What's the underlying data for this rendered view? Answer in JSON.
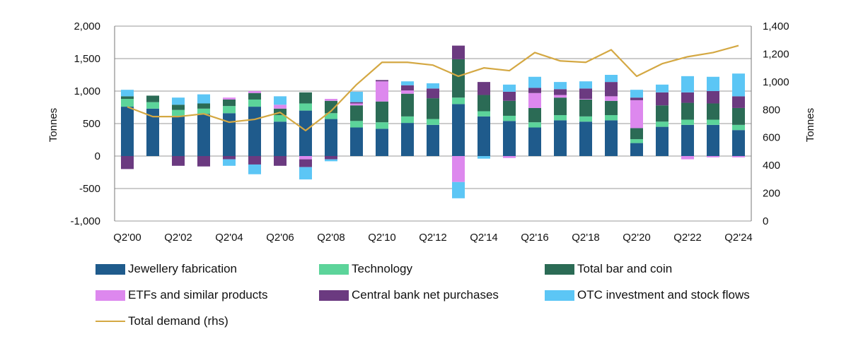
{
  "chart_data": {
    "type": "bar",
    "stacked": true,
    "categories": [
      "Q2'00",
      "Q2'01",
      "Q2'02",
      "Q2'03",
      "Q2'04",
      "Q2'05",
      "Q2'06",
      "Q2'07",
      "Q2'08",
      "Q2'09",
      "Q2'10",
      "Q2'11",
      "Q2'12",
      "Q2'13",
      "Q2'14",
      "Q2'15",
      "Q2'16",
      "Q2'17",
      "Q2'18",
      "Q2'19",
      "Q2'20",
      "Q2'21",
      "Q2'22",
      "Q2'23",
      "Q2'24"
    ],
    "x_tick_labels": [
      "Q2'00",
      "Q2'02",
      "Q2'04",
      "Q2'06",
      "Q2'08",
      "Q2'10",
      "Q2'12",
      "Q2'14",
      "Q2'16",
      "Q2'18",
      "Q2'20",
      "Q2'22",
      "Q2'24"
    ],
    "ylabel": "Tonnes",
    "y2label": "Tonnes",
    "ylim": [
      -1000,
      2000
    ],
    "y_ticks": [
      -1000,
      -500,
      0,
      500,
      1000,
      1500,
      2000
    ],
    "y_tick_labels": [
      "-1,000",
      "-500",
      "0",
      "500",
      "1,000",
      "1,500",
      "2,000"
    ],
    "y2lim": [
      0,
      1400
    ],
    "y2_ticks": [
      0,
      200,
      400,
      600,
      800,
      1000,
      1200,
      1400
    ],
    "y2_tick_labels": [
      "0",
      "200",
      "400",
      "600",
      "800",
      "1,000",
      "1,200",
      "1,400"
    ],
    "grid": true,
    "legend_position": "bottom",
    "series": [
      {
        "name": "Jewellery fabrication",
        "color": "#1f5b8c",
        "values": [
          760,
          730,
          620,
          650,
          660,
          760,
          530,
          700,
          570,
          440,
          420,
          510,
          480,
          800,
          610,
          540,
          440,
          550,
          530,
          550,
          200,
          450,
          480,
          480,
          400
        ]
      },
      {
        "name": "Technology",
        "color": "#5cd49a",
        "values": [
          120,
          100,
          90,
          80,
          110,
          110,
          100,
          110,
          90,
          100,
          100,
          100,
          90,
          100,
          80,
          80,
          80,
          80,
          80,
          80,
          60,
          80,
          80,
          80,
          80
        ]
      },
      {
        "name": "Total bar and coin",
        "color": "#2b6b55",
        "values": [
          40,
          100,
          80,
          80,
          100,
          100,
          100,
          170,
          190,
          240,
          320,
          350,
          320,
          590,
          250,
          230,
          220,
          270,
          260,
          220,
          170,
          250,
          260,
          250,
          260
        ]
      },
      {
        "name": "ETFs and similar products",
        "color": "#dd88ee",
        "values": [
          0,
          0,
          0,
          0,
          30,
          30,
          60,
          -50,
          30,
          30,
          310,
          50,
          0,
          -400,
          0,
          -30,
          230,
          40,
          10,
          70,
          430,
          0,
          -50,
          -20,
          -20
        ]
      },
      {
        "name": "Central bank net purchases",
        "color": "#6b3a80",
        "values": [
          -200,
          0,
          -150,
          -160,
          -50,
          -130,
          -150,
          -120,
          -50,
          20,
          20,
          80,
          150,
          210,
          200,
          140,
          80,
          90,
          160,
          220,
          40,
          200,
          160,
          190,
          180
        ]
      },
      {
        "name": "OTC investment and stock flows",
        "color": "#5cc6f5",
        "values": [
          100,
          0,
          110,
          140,
          -100,
          -150,
          130,
          -190,
          -30,
          160,
          0,
          60,
          80,
          -250,
          -40,
          110,
          170,
          110,
          110,
          110,
          120,
          120,
          250,
          220,
          350
        ]
      }
    ],
    "line": {
      "name": "Total demand (rhs)",
      "color": "#d4a843",
      "axis": "right",
      "values": [
        820,
        750,
        750,
        770,
        710,
        730,
        780,
        650,
        790,
        980,
        1140,
        1140,
        1120,
        1040,
        1100,
        1080,
        1210,
        1150,
        1140,
        1230,
        1040,
        1130,
        1180,
        1210,
        1260
      ]
    }
  }
}
